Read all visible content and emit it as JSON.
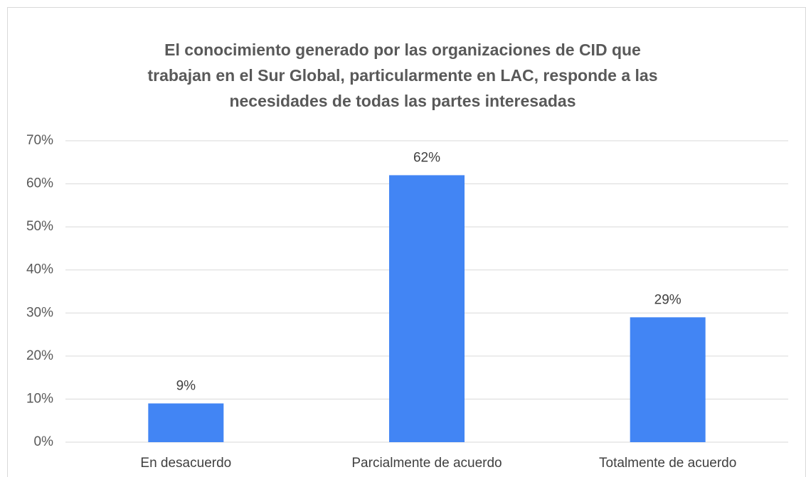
{
  "chart_data": {
    "type": "bar",
    "title": [
      "El conocimiento generado por las organizaciones de CID que",
      "trabajan en el Sur Global, particularmente en LAC, responde a las",
      "necesidades de todas las partes interesadas"
    ],
    "categories": [
      "En desacuerdo",
      "Parcialmente de acuerdo",
      "Totalmente de acuerdo"
    ],
    "values": [
      9,
      62,
      29
    ],
    "value_labels": [
      "9%",
      "62%",
      "29%"
    ],
    "color": "#4285f4",
    "ylim": [
      0,
      70
    ],
    "yticks": [
      {
        "value": 0,
        "label": "0%"
      },
      {
        "value": 10,
        "label": "10%"
      },
      {
        "value": 20,
        "label": "20%"
      },
      {
        "value": 30,
        "label": "30%"
      },
      {
        "value": 40,
        "label": "40%"
      },
      {
        "value": 50,
        "label": "50%"
      },
      {
        "value": 60,
        "label": "60%"
      },
      {
        "value": 70,
        "label": "70%"
      }
    ],
    "grid": true
  }
}
